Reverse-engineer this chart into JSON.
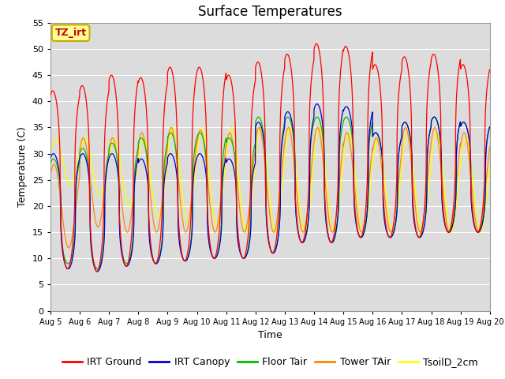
{
  "title": "Surface Temperatures",
  "xlabel": "Time",
  "ylabel": "Temperature (C)",
  "ylim": [
    0,
    55
  ],
  "yticks": [
    0,
    5,
    10,
    15,
    20,
    25,
    30,
    35,
    40,
    45,
    50,
    55
  ],
  "num_days": 15,
  "points_per_day": 144,
  "series": [
    {
      "label": "IRT Ground",
      "color": "#FF0000"
    },
    {
      "label": "IRT Canopy",
      "color": "#0000CC"
    },
    {
      "label": "Floor Tair",
      "color": "#00BB00"
    },
    {
      "label": "Tower TAir",
      "color": "#FF8800"
    },
    {
      "label": "TsoilD_2cm",
      "color": "#FFFF00"
    }
  ],
  "annotation_text": "TZ_irt",
  "annotation_color": "#CC0000",
  "annotation_bg": "#FFFF99",
  "annotation_border": "#CCAA00",
  "plot_bg": "#DCDCDC",
  "grid_color": "#FFFFFF",
  "title_fontsize": 12,
  "axis_fontsize": 9,
  "tick_fontsize": 8,
  "legend_fontsize": 9,
  "irt_ground_peaks": [
    42,
    43,
    45,
    44.5,
    46.5,
    46.5,
    45,
    47.5,
    49,
    51,
    50.5,
    47,
    48.5,
    49,
    47
  ],
  "irt_ground_mins": [
    8,
    7.5,
    8.5,
    9,
    9.5,
    10,
    10,
    11,
    13,
    13,
    14,
    14,
    14,
    15,
    15
  ],
  "irt_canopy_peaks": [
    30,
    30,
    30,
    29,
    30,
    30,
    29,
    36,
    38,
    39.5,
    39,
    34,
    36,
    37,
    36
  ],
  "irt_canopy_mins": [
    8,
    7.5,
    8.5,
    9,
    9.5,
    10,
    10,
    11,
    13,
    13,
    14,
    14,
    14,
    15,
    15
  ],
  "floor_tair_peaks": [
    29,
    31,
    32,
    33,
    34,
    34,
    33,
    37,
    37,
    37,
    37,
    34,
    36,
    37,
    36
  ],
  "floor_tair_mins": [
    9,
    8,
    9,
    9,
    9.5,
    10,
    10,
    11,
    13,
    13,
    14,
    14,
    14,
    15,
    15
  ],
  "tower_tair_peaks": [
    28,
    33,
    33,
    34,
    35,
    34.5,
    34,
    35,
    35,
    35,
    34,
    33,
    35,
    35,
    34
  ],
  "tower_tair_mins": [
    12,
    16,
    15,
    15,
    15,
    15,
    15,
    15,
    15,
    15,
    15,
    15,
    15,
    15,
    15
  ],
  "tsoil_peaks": [
    33,
    33,
    33,
    33,
    35,
    35,
    35,
    35,
    35,
    35,
    34,
    33,
    34,
    34,
    33
  ],
  "tsoil_mins": [
    24,
    22,
    20,
    18,
    17,
    16,
    15,
    15,
    15,
    15,
    15,
    15,
    15,
    15,
    15
  ]
}
